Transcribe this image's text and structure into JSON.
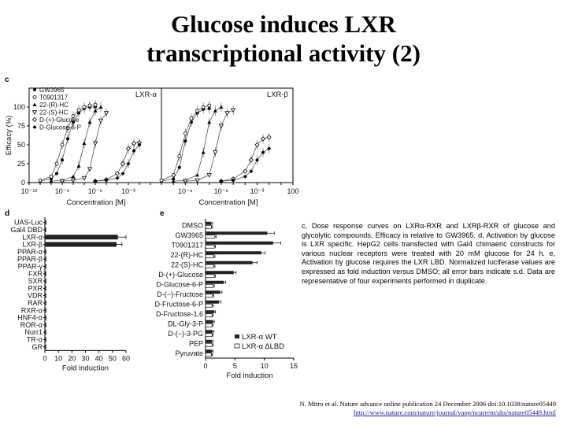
{
  "title": {
    "line1": "Glucose induces LXR",
    "line2": "transcriptional activity (2)"
  },
  "panel_c": {
    "letter": "c",
    "ylabel": "Efficacy (%)",
    "xlabel": "Concentration [M]",
    "y_ticks": [
      "0",
      "25",
      "50",
      "75",
      "100"
    ],
    "x_ticks_left": [
      "10⁻¹²",
      "10⁻⁹",
      "10⁻⁶",
      "10⁻³"
    ],
    "x_ticks_right": [
      "10⁻⁹",
      "10⁻⁶",
      "10⁻³",
      "100"
    ],
    "legend": [
      "GW3965",
      "T0901317",
      "22-(R)-HC",
      "22-(S)-HC",
      "D-(+)-Glucose",
      "D-Glucose-6-P"
    ]
  },
  "panel_d": {
    "letter": "d",
    "xlabel": "Fold induction",
    "x_ticks": [
      "0",
      "10",
      "20",
      "30",
      "40",
      "50",
      "60"
    ]
  },
  "panel_e": {
    "letter": "e",
    "xlabel": "Fold induction",
    "x_ticks": [
      "0",
      "5",
      "10",
      "15"
    ],
    "legend_wt": "LXR-α WT",
    "legend_dlbd": "LXR-α ΔLBD"
  },
  "caption": "c, Dose response curves on LXRα-RXR and LXRβ-RXR of glucose and glycolytic compounds. Efficacy is relative to GW3965. d, Activation by glucose is LXR specific. HepG2 cells transfected with Gal4 chimaeric constructs for various nuclear receptors were treated with 20 mM glucose for 24 h. e, Activation by glucose requires the LXR LBD. Normalized luciferase values are expressed as fold induction versus DMSO; all error bars indicate s.d. Data are representative of four experiments performed in duplicate.",
  "citation": {
    "line1": "N. Mitro et al. Nature advance online publication 24 December 2006 doi:10.1038/nature05449",
    "url": "http://www.nature.com/nature/journal/vaop/ncurrent/abs/nature05449.html"
  },
  "chart_data": [
    {
      "type": "line",
      "panel": "c",
      "subtitle": "LXR-α",
      "xlabel": "Concentration [M]",
      "ylabel": "Efficacy (%)",
      "x_scale": "log",
      "xlim": [
        -12,
        0
      ],
      "ylim": [
        0,
        125
      ],
      "series": [
        {
          "name": "GW3965",
          "points": [
            [
              -11,
              2
            ],
            [
              -10,
              5
            ],
            [
              -9.5,
              12
            ],
            [
              -9,
              30
            ],
            [
              -8.5,
              58
            ],
            [
              -8,
              80
            ],
            [
              -7.5,
              92
            ],
            [
              -7,
              98
            ],
            [
              -6.5,
              100
            ],
            [
              -6,
              100
            ]
          ]
        },
        {
          "name": "T0901317",
          "points": [
            [
              -11,
              3
            ],
            [
              -10,
              8
            ],
            [
              -9.5,
              25
            ],
            [
              -9,
              50
            ],
            [
              -8.5,
              72
            ],
            [
              -8,
              88
            ],
            [
              -7.5,
              96
            ],
            [
              -7,
              100
            ],
            [
              -6.5,
              102
            ],
            [
              -6,
              103
            ]
          ]
        },
        {
          "name": "22-(R)-HC",
          "points": [
            [
              -10,
              2
            ],
            [
              -9,
              3
            ],
            [
              -8,
              8
            ],
            [
              -7.5,
              22
            ],
            [
              -7,
              52
            ],
            [
              -6.5,
              80
            ],
            [
              -6,
              95
            ],
            [
              -5.5,
              100
            ]
          ]
        },
        {
          "name": "22-(S)-HC",
          "points": [
            [
              -9,
              2
            ],
            [
              -8,
              3
            ],
            [
              -7,
              6
            ],
            [
              -6.5,
              18
            ],
            [
              -6,
              52
            ],
            [
              -5.5,
              82
            ],
            [
              -5,
              92
            ]
          ]
        },
        {
          "name": "D-(+)-Glucose",
          "points": [
            [
              -6,
              2
            ],
            [
              -5,
              4
            ],
            [
              -4,
              12
            ],
            [
              -3.5,
              25
            ],
            [
              -3,
              45
            ],
            [
              -2.5,
              52
            ],
            [
              -2,
              53
            ]
          ]
        },
        {
          "name": "D-Glucose-6-P",
          "points": [
            [
              -6,
              2
            ],
            [
              -5,
              3
            ],
            [
              -4,
              6
            ],
            [
              -3.5,
              12
            ],
            [
              -3,
              25
            ],
            [
              -2.5,
              42
            ],
            [
              -2,
              50
            ]
          ]
        }
      ]
    },
    {
      "type": "line",
      "panel": "c",
      "subtitle": "LXR-β",
      "xlabel": "Concentration [M]",
      "x_scale": "log",
      "xlim": [
        -11,
        0
      ],
      "ylim": [
        0,
        125
      ],
      "series": [
        {
          "name": "GW3965",
          "points": [
            [
              -11,
              2
            ],
            [
              -10,
              5
            ],
            [
              -9.5,
              20
            ],
            [
              -9,
              55
            ],
            [
              -8.5,
              80
            ],
            [
              -8,
              92
            ],
            [
              -7.5,
              97
            ],
            [
              -7,
              98
            ]
          ]
        },
        {
          "name": "T0901317",
          "points": [
            [
              -11,
              3
            ],
            [
              -10,
              10
            ],
            [
              -9.5,
              35
            ],
            [
              -9,
              65
            ],
            [
              -8.5,
              85
            ],
            [
              -8,
              95
            ],
            [
              -7.5,
              100
            ],
            [
              -7,
              102
            ]
          ]
        },
        {
          "name": "22-(R)-HC",
          "points": [
            [
              -10,
              2
            ],
            [
              -9,
              3
            ],
            [
              -8,
              10
            ],
            [
              -7.5,
              40
            ],
            [
              -7,
              80
            ],
            [
              -6.5,
              95
            ],
            [
              -6,
              100
            ]
          ]
        },
        {
          "name": "22-(S)-HC",
          "points": [
            [
              -9,
              2
            ],
            [
              -8,
              3
            ],
            [
              -7,
              10
            ],
            [
              -6.5,
              40
            ],
            [
              -6,
              75
            ],
            [
              -5.5,
              92
            ],
            [
              -5,
              96
            ]
          ]
        },
        {
          "name": "D-(+)-Glucose",
          "points": [
            [
              -6,
              2
            ],
            [
              -5,
              5
            ],
            [
              -4,
              15
            ],
            [
              -3.5,
              30
            ],
            [
              -3,
              50
            ],
            [
              -2.5,
              58
            ],
            [
              -2,
              60
            ]
          ]
        },
        {
          "name": "D-Glucose-6-P",
          "points": [
            [
              -6,
              2
            ],
            [
              -5,
              3
            ],
            [
              -4,
              8
            ],
            [
              -3.5,
              15
            ],
            [
              -3,
              30
            ],
            [
              -2.5,
              40
            ],
            [
              -2,
              45
            ]
          ]
        }
      ]
    },
    {
      "type": "bar",
      "panel": "d",
      "orientation": "horizontal",
      "xlabel": "Fold induction",
      "xlim": [
        0,
        60
      ],
      "categories": [
        "UAS-Luc",
        "Gal4 DBD",
        "LXR-α",
        "LXR-β",
        "PPAR-α",
        "PPAR-β",
        "PPAR-γ",
        "FXR",
        "SXR",
        "PXR",
        "VDR",
        "RAR",
        "RXR-α",
        "HNF4-α",
        "ROR-α",
        "Nurr1",
        "TR-α",
        "GR"
      ],
      "values": [
        1,
        1,
        54,
        53,
        1,
        1,
        1,
        1,
        1,
        1,
        1,
        1,
        1,
        1,
        1,
        1,
        1,
        1
      ],
      "errors": [
        0,
        0,
        6,
        4,
        0,
        0,
        0,
        0,
        0,
        0,
        0,
        0,
        0,
        0,
        0,
        0,
        0,
        0
      ]
    },
    {
      "type": "bar",
      "panel": "e",
      "orientation": "horizontal",
      "xlabel": "Fold induction",
      "xlim": [
        0,
        15
      ],
      "categories": [
        "DMSO",
        "GW3965",
        "T0901317",
        "22-(R)-HC",
        "22-(S)-HC",
        "D-(+)-Glucose",
        "D-Glucose-6-P",
        "D-(−)-Fructose",
        "D-Fructose-6-P",
        "D-Fructose-1,6",
        "DL-Gly-3-P",
        "D-(−)-3-PG",
        "PEP",
        "Pyruvate"
      ],
      "series": [
        {
          "name": "LXR-α WT",
          "values": [
            1,
            10.5,
            11.5,
            9.5,
            8,
            4.8,
            3.1,
            2.5,
            2.3,
            1.5,
            1.3,
            1.2,
            1.1,
            1.1
          ],
          "errors": [
            0.2,
            1.2,
            1.3,
            0.6,
            0.8,
            0.4,
            0.3,
            0.3,
            0.3,
            0.2,
            0.2,
            0.2,
            0.2,
            0.2
          ]
        },
        {
          "name": "LXR-α ΔLBD",
          "values": [
            1,
            1.6,
            1.5,
            1.4,
            1.4,
            1.5,
            1.3,
            1.2,
            1.1,
            1.1,
            1.1,
            1.1,
            1.1,
            1.0
          ],
          "errors": [
            0.2,
            0.2,
            0.2,
            0.2,
            0.2,
            0.2,
            0.2,
            0.2,
            0.2,
            0.2,
            0.2,
            0.2,
            0.2,
            0.2
          ]
        }
      ]
    }
  ]
}
